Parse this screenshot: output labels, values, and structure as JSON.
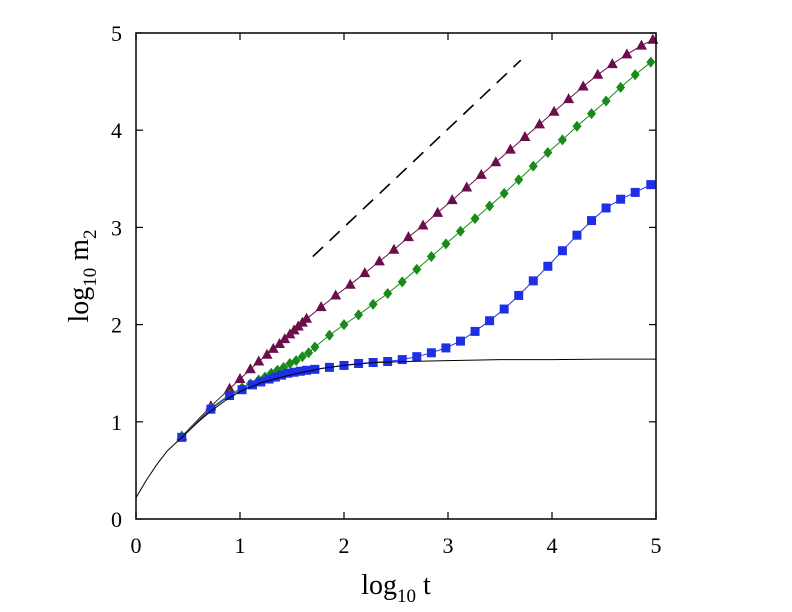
{
  "chart_data": {
    "type": "line",
    "xlabel": {
      "base": "log",
      "sub": "10",
      "rest": " t"
    },
    "ylabel": {
      "base": "log",
      "sub": "10",
      "rest": " m",
      "sub2": "2"
    },
    "xlim": [
      0,
      5
    ],
    "ylim": [
      0,
      5
    ],
    "x_ticks": [
      "0",
      "1",
      "2",
      "3",
      "4",
      "5"
    ],
    "y_ticks": [
      "0",
      "1",
      "2",
      "3",
      "4",
      "5"
    ],
    "grid": false,
    "colors": {
      "triangle": "#6b0f4a",
      "diamond": "#1a8a1a",
      "square": "#1f2fe6",
      "line": "#000000"
    },
    "series": [
      {
        "marker": "triangle",
        "color": "#6b0f4a",
        "points": [
          [
            0.44,
            0.85
          ],
          [
            0.72,
            1.16
          ],
          [
            0.9,
            1.34
          ],
          [
            1.0,
            1.44
          ],
          [
            1.1,
            1.54
          ],
          [
            1.18,
            1.62
          ],
          [
            1.26,
            1.69
          ],
          [
            1.32,
            1.75
          ],
          [
            1.38,
            1.8
          ],
          [
            1.43,
            1.85
          ],
          [
            1.48,
            1.9
          ],
          [
            1.52,
            1.94
          ],
          [
            1.56,
            1.98
          ],
          [
            1.6,
            2.02
          ],
          [
            1.64,
            2.06
          ],
          [
            1.78,
            2.18
          ],
          [
            1.92,
            2.3
          ],
          [
            2.06,
            2.41
          ],
          [
            2.2,
            2.53
          ],
          [
            2.34,
            2.65
          ],
          [
            2.48,
            2.77
          ],
          [
            2.62,
            2.9
          ],
          [
            2.76,
            3.02
          ],
          [
            2.9,
            3.15
          ],
          [
            3.04,
            3.28
          ],
          [
            3.18,
            3.41
          ],
          [
            3.32,
            3.54
          ],
          [
            3.46,
            3.67
          ],
          [
            3.6,
            3.8
          ],
          [
            3.74,
            3.93
          ],
          [
            3.88,
            4.06
          ],
          [
            4.02,
            4.19
          ],
          [
            4.16,
            4.32
          ],
          [
            4.3,
            4.45
          ],
          [
            4.44,
            4.57
          ],
          [
            4.58,
            4.68
          ],
          [
            4.72,
            4.78
          ],
          [
            4.86,
            4.87
          ],
          [
            4.97,
            4.93
          ]
        ]
      },
      {
        "marker": "diamond",
        "color": "#1a8a1a",
        "points": [
          [
            0.44,
            0.85
          ],
          [
            0.72,
            1.14
          ],
          [
            0.9,
            1.28
          ],
          [
            1.02,
            1.35
          ],
          [
            1.1,
            1.39
          ],
          [
            1.18,
            1.43
          ],
          [
            1.24,
            1.46
          ],
          [
            1.3,
            1.5
          ],
          [
            1.36,
            1.53
          ],
          [
            1.42,
            1.56
          ],
          [
            1.48,
            1.6
          ],
          [
            1.54,
            1.63
          ],
          [
            1.6,
            1.67
          ],
          [
            1.66,
            1.71
          ],
          [
            1.72,
            1.77
          ],
          [
            1.86,
            1.89
          ],
          [
            2.0,
            2.0
          ],
          [
            2.14,
            2.1
          ],
          [
            2.28,
            2.21
          ],
          [
            2.42,
            2.32
          ],
          [
            2.56,
            2.44
          ],
          [
            2.7,
            2.57
          ],
          [
            2.84,
            2.7
          ],
          [
            2.98,
            2.83
          ],
          [
            3.12,
            2.96
          ],
          [
            3.26,
            3.09
          ],
          [
            3.4,
            3.22
          ],
          [
            3.54,
            3.35
          ],
          [
            3.68,
            3.49
          ],
          [
            3.82,
            3.63
          ],
          [
            3.96,
            3.77
          ],
          [
            4.1,
            3.9
          ],
          [
            4.24,
            4.04
          ],
          [
            4.38,
            4.17
          ],
          [
            4.52,
            4.3
          ],
          [
            4.66,
            4.44
          ],
          [
            4.8,
            4.57
          ],
          [
            4.95,
            4.7
          ]
        ]
      },
      {
        "marker": "square",
        "color": "#1f2fe6",
        "points": [
          [
            0.44,
            0.84
          ],
          [
            0.72,
            1.13
          ],
          [
            0.9,
            1.27
          ],
          [
            1.02,
            1.33
          ],
          [
            1.12,
            1.38
          ],
          [
            1.2,
            1.41
          ],
          [
            1.28,
            1.44
          ],
          [
            1.34,
            1.46
          ],
          [
            1.4,
            1.48
          ],
          [
            1.46,
            1.5
          ],
          [
            1.52,
            1.51
          ],
          [
            1.58,
            1.52
          ],
          [
            1.64,
            1.53
          ],
          [
            1.72,
            1.54
          ],
          [
            1.86,
            1.56
          ],
          [
            2.0,
            1.58
          ],
          [
            2.14,
            1.6
          ],
          [
            2.28,
            1.61
          ],
          [
            2.42,
            1.62
          ],
          [
            2.56,
            1.64
          ],
          [
            2.7,
            1.67
          ],
          [
            2.84,
            1.71
          ],
          [
            2.98,
            1.76
          ],
          [
            3.12,
            1.83
          ],
          [
            3.26,
            1.93
          ],
          [
            3.4,
            2.04
          ],
          [
            3.54,
            2.16
          ],
          [
            3.68,
            2.3
          ],
          [
            3.82,
            2.45
          ],
          [
            3.96,
            2.6
          ],
          [
            4.1,
            2.76
          ],
          [
            4.24,
            2.92
          ],
          [
            4.38,
            3.07
          ],
          [
            4.52,
            3.2
          ],
          [
            4.66,
            3.29
          ],
          [
            4.8,
            3.36
          ],
          [
            4.95,
            3.44
          ]
        ]
      },
      {
        "marker": "none",
        "style": "solid",
        "color": "#000000",
        "points": [
          [
            0.0,
            0.22
          ],
          [
            0.1,
            0.4
          ],
          [
            0.2,
            0.56
          ],
          [
            0.3,
            0.7
          ],
          [
            0.44,
            0.84
          ],
          [
            0.6,
            1.0
          ],
          [
            0.72,
            1.11
          ],
          [
            0.9,
            1.25
          ],
          [
            1.02,
            1.32
          ],
          [
            1.2,
            1.4
          ],
          [
            1.4,
            1.46
          ],
          [
            1.6,
            1.51
          ],
          [
            1.8,
            1.55
          ],
          [
            2.0,
            1.58
          ],
          [
            2.3,
            1.61
          ],
          [
            2.6,
            1.62
          ],
          [
            3.0,
            1.63
          ],
          [
            3.5,
            1.64
          ],
          [
            4.0,
            1.64
          ],
          [
            4.5,
            1.645
          ],
          [
            5.0,
            1.645
          ]
        ]
      },
      {
        "marker": "none",
        "style": "dashed",
        "color": "#000000",
        "points": [
          [
            1.7,
            2.7
          ],
          [
            3.7,
            4.72
          ]
        ]
      }
    ]
  }
}
